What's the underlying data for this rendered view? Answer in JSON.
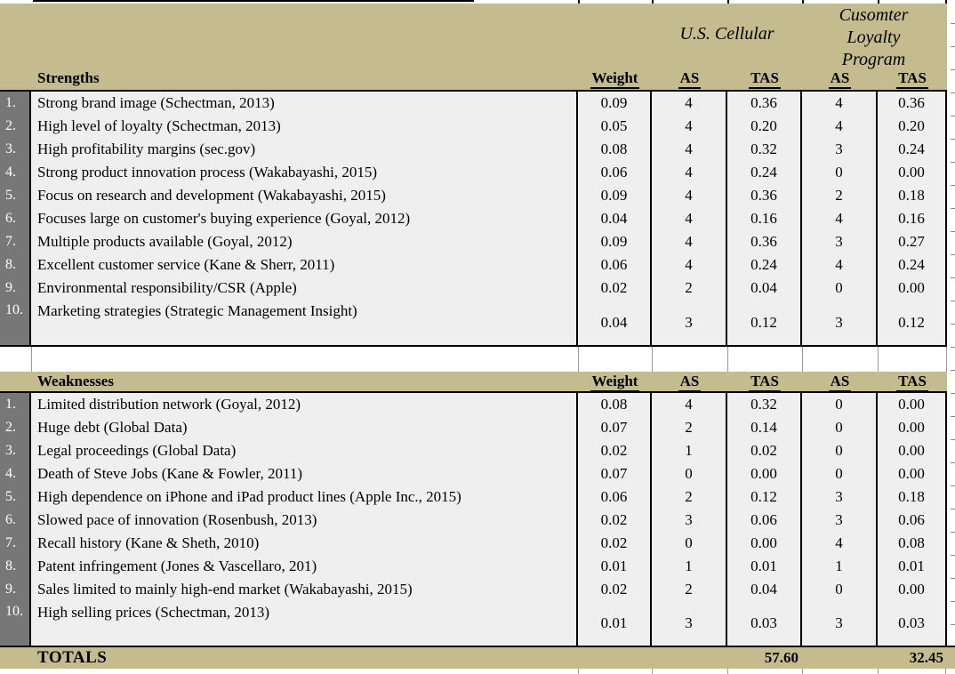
{
  "colors": {
    "header_tan": "#c4bc8e",
    "sidebar_gray": "#777777",
    "row_gray": "#efefef",
    "border_black": "#000000"
  },
  "strategies": {
    "strategy1": "U.S. Cellular",
    "strategy2_lines": [
      "Cusomter",
      "Loyalty",
      "Program"
    ]
  },
  "strengths": {
    "label": "Strengths",
    "columns": [
      "Weight",
      "AS",
      "TAS",
      "AS",
      "TAS"
    ],
    "rows": [
      {
        "num": "1.",
        "desc": "Strong brand image (Schectman, 2013)",
        "weight": "0.09",
        "as1": "4",
        "tas1": "0.36",
        "as2": "4",
        "tas2": "0.36"
      },
      {
        "num": "2.",
        "desc": "High level of loyalty (Schectman, 2013)",
        "weight": "0.05",
        "as1": "4",
        "tas1": "0.20",
        "as2": "4",
        "tas2": "0.20"
      },
      {
        "num": "3.",
        "desc": "High profitability margins (sec.gov)",
        "weight": "0.08",
        "as1": "4",
        "tas1": "0.32",
        "as2": "3",
        "tas2": "0.24"
      },
      {
        "num": "4.",
        "desc": "Strong product innovation process (Wakabayashi, 2015)",
        "weight": "0.06",
        "as1": "4",
        "tas1": "0.24",
        "as2": "0",
        "tas2": "0.00"
      },
      {
        "num": "5.",
        "desc": "Focus on research and development (Wakabayashi, 2015)",
        "weight": "0.09",
        "as1": "4",
        "tas1": "0.36",
        "as2": "2",
        "tas2": "0.18"
      },
      {
        "num": "6.",
        "desc": "Focuses large on customer's buying experience (Goyal, 2012)",
        "weight": "0.04",
        "as1": "4",
        "tas1": "0.16",
        "as2": "4",
        "tas2": "0.16"
      },
      {
        "num": "7.",
        "desc": "Multiple products available (Goyal, 2012)",
        "weight": "0.09",
        "as1": "4",
        "tas1": "0.36",
        "as2": "3",
        "tas2": "0.27"
      },
      {
        "num": "8.",
        "desc": "Excellent customer service (Kane & Sherr, 2011)",
        "weight": "0.06",
        "as1": "4",
        "tas1": "0.24",
        "as2": "4",
        "tas2": "0.24"
      },
      {
        "num": "9.",
        "desc": "Environmental responsibility/CSR (Apple)",
        "weight": "0.02",
        "as1": "2",
        "tas1": "0.04",
        "as2": "0",
        "tas2": "0.00"
      },
      {
        "num": "10.",
        "desc": "Marketing strategies (Strategic Management Insight)",
        "weight": "0.04",
        "as1": "3",
        "tas1": "0.12",
        "as2": "3",
        "tas2": "0.12"
      }
    ]
  },
  "weaknesses": {
    "label": "Weaknesses",
    "columns": [
      "Weight",
      "AS",
      "TAS",
      "AS",
      "TAS"
    ],
    "rows": [
      {
        "num": "1.",
        "desc": "Limited distribution network (Goyal, 2012)",
        "weight": "0.08",
        "as1": "4",
        "tas1": "0.32",
        "as2": "0",
        "tas2": "0.00"
      },
      {
        "num": "2.",
        "desc": "Huge debt (Global Data)",
        "weight": "0.07",
        "as1": "2",
        "tas1": "0.14",
        "as2": "0",
        "tas2": "0.00"
      },
      {
        "num": "3.",
        "desc": "Legal proceedings (Global Data)",
        "weight": "0.02",
        "as1": "1",
        "tas1": "0.02",
        "as2": "0",
        "tas2": "0.00"
      },
      {
        "num": "4.",
        "desc": "Death of Steve Jobs (Kane & Fowler, 2011)",
        "weight": "0.07",
        "as1": "0",
        "tas1": "0.00",
        "as2": "0",
        "tas2": "0.00"
      },
      {
        "num": "5.",
        "desc": "High dependence on iPhone and iPad product lines (Apple Inc., 2015)",
        "weight": "0.06",
        "as1": "2",
        "tas1": "0.12",
        "as2": "3",
        "tas2": "0.18"
      },
      {
        "num": "6.",
        "desc": "Slowed pace of innovation (Rosenbush, 2013)",
        "weight": "0.02",
        "as1": "3",
        "tas1": "0.06",
        "as2": "3",
        "tas2": "0.06"
      },
      {
        "num": "7.",
        "desc": "Recall history (Kane & Sheth, 2010)",
        "weight": "0.02",
        "as1": "0",
        "tas1": "0.00",
        "as2": "4",
        "tas2": "0.08"
      },
      {
        "num": "8.",
        "desc": "Patent infringement (Jones & Vascellaro, 201)",
        "weight": "0.01",
        "as1": "1",
        "tas1": "0.01",
        "as2": "1",
        "tas2": "0.01"
      },
      {
        "num": "9.",
        "desc": "Sales limited to mainly high-end market (Wakabayashi, 2015)",
        "weight": "0.02",
        "as1": "2",
        "tas1": "0.04",
        "as2": "0",
        "tas2": "0.00"
      },
      {
        "num": "10.",
        "desc": "High selling prices (Schectman, 2013)",
        "weight": "0.01",
        "as1": "3",
        "tas1": "0.03",
        "as2": "3",
        "tas2": "0.03"
      }
    ]
  },
  "totals": {
    "label": "TOTALS",
    "tas1": "57.60",
    "tas2": "32.45"
  }
}
